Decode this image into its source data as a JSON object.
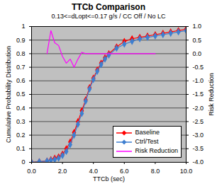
{
  "chart_data": {
    "type": "line",
    "title": "TTCb Comparison",
    "subtitle": "0.13<=dLopt<=0.17 g/s / CC Off / No LC",
    "x_label": "TTCb (sec)",
    "y_label": "Cumulative Probability Distribution",
    "y2_label": "Risk Reduction",
    "x": [
      0,
      0.5,
      1.0,
      1.25,
      1.5,
      1.75,
      2.0,
      2.25,
      2.5,
      2.75,
      3.0,
      3.25,
      3.5,
      3.75,
      4.0,
      4.25,
      4.5,
      4.75,
      5.0,
      5.5,
      6.0,
      6.5,
      7.0,
      7.5,
      8.0,
      8.5,
      9.0,
      9.5,
      10.0
    ],
    "series": [
      {
        "name": "Baseline",
        "color": "#ff0000",
        "marker": "diamond",
        "values": [
          0,
          0.005,
          0.01,
          0.02,
          0.03,
          0.04,
          0.06,
          0.1,
          0.15,
          0.22,
          0.3,
          0.38,
          0.46,
          0.55,
          0.62,
          0.68,
          0.73,
          0.77,
          0.8,
          0.85,
          0.89,
          0.91,
          0.92,
          0.93,
          0.94,
          0.95,
          0.96,
          0.97,
          0.98
        ]
      },
      {
        "name": "Ctrl/Test",
        "color": "#3f7fd0",
        "marker": "diamond",
        "values": [
          0,
          0.005,
          0.01,
          0.015,
          0.02,
          0.03,
          0.05,
          0.08,
          0.13,
          0.2,
          0.28,
          0.36,
          0.45,
          0.54,
          0.61,
          0.67,
          0.72,
          0.76,
          0.79,
          0.84,
          0.87,
          0.89,
          0.91,
          0.92,
          0.93,
          0.94,
          0.95,
          0.96,
          0.97
        ]
      },
      {
        "name": "Risk Reduction",
        "color": "#ff00ff",
        "axis": "y2",
        "values": [
          null,
          null,
          0.0,
          0.85,
          0.4,
          0.3,
          -0.1,
          -0.35,
          -0.2,
          -0.5,
          -0.2,
          0.05,
          0.0,
          0.0,
          0.0,
          0.0,
          0.0,
          0.0,
          0.0,
          0.0,
          0.0,
          0.0,
          0.0,
          0.0,
          0.0,
          null,
          null,
          null,
          null
        ]
      }
    ],
    "xlim": [
      0,
      10
    ],
    "xticks": [
      {
        "value": 0,
        "label": "0.0"
      },
      {
        "value": 2,
        "label": "2.0"
      },
      {
        "value": 4,
        "label": "4.0"
      },
      {
        "value": 6,
        "label": "6.0"
      },
      {
        "value": 8,
        "label": "8.0"
      },
      {
        "value": 10,
        "label": "10.0"
      }
    ],
    "ylim": [
      0,
      1
    ],
    "yticks": [
      0,
      0.1,
      0.2,
      0.3,
      0.4,
      0.5,
      0.6,
      0.7,
      0.8,
      0.9,
      1
    ],
    "y2lim": [
      -4,
      1
    ],
    "y2ticks": [
      {
        "value": 1,
        "label": "1.0"
      },
      {
        "value": 0.5,
        "label": "0.5"
      },
      {
        "value": 0,
        "label": "0.0"
      },
      {
        "value": -0.5,
        "label": "-0.5"
      },
      {
        "value": -1,
        "label": "-1.0"
      },
      {
        "value": -1.5,
        "label": "-1.5"
      },
      {
        "value": -2,
        "label": "-2.0"
      },
      {
        "value": -2.5,
        "label": "-2.5"
      },
      {
        "value": -3,
        "label": "-3.0"
      },
      {
        "value": -3.5,
        "label": "-3.5"
      },
      {
        "value": -4,
        "label": "-4.0"
      }
    ],
    "grid": true,
    "legend": "lower right"
  }
}
